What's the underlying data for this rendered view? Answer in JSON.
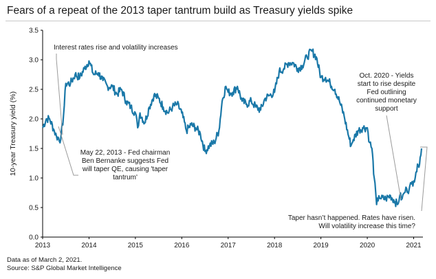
{
  "title": "Fears of a repeat of the 2013 taper tantrum build as Treasury yields spike",
  "footer": {
    "data_note": "Data as of March 2, 2021.",
    "source": "Source: S&P Global Market Intelligence"
  },
  "colors": {
    "line": "#1a78a8",
    "text": "#1a1a1a",
    "axis": "#000000",
    "annotation_leader": "#9a9a9a",
    "border": "#c8c8c8"
  },
  "chart_data": {
    "type": "line",
    "title": "",
    "xlabel": "",
    "ylabel": "10-year Treasury yield (%)",
    "xlim": [
      2013.0,
      2021.2
    ],
    "ylim": [
      0.0,
      3.5
    ],
    "x_ticks": [
      2013,
      2014,
      2015,
      2016,
      2017,
      2018,
      2019,
      2020,
      2021
    ],
    "y_ticks": [
      0.0,
      0.5,
      1.0,
      1.5,
      2.0,
      2.5,
      3.0,
      3.5
    ],
    "y_tick_labels": [
      "0.0",
      "0.5",
      "1.0",
      "1.5",
      "2.0",
      "2.5",
      "3.0",
      "3.5"
    ],
    "grid": false,
    "series": [
      {
        "x": [
          2013.0,
          2013.08,
          2013.15,
          2013.25,
          2013.3,
          2013.39,
          2013.45,
          2013.5,
          2013.6,
          2013.7,
          2013.8,
          2013.9,
          2014.0,
          2014.1,
          2014.2,
          2014.3,
          2014.4,
          2014.5,
          2014.6,
          2014.7,
          2014.8,
          2014.9,
          2015.0,
          2015.05,
          2015.1,
          2015.2,
          2015.3,
          2015.4,
          2015.5,
          2015.6,
          2015.7,
          2015.8,
          2015.9,
          2016.0,
          2016.1,
          2016.2,
          2016.3,
          2016.4,
          2016.5,
          2016.6,
          2016.7,
          2016.8,
          2016.87,
          2016.95,
          2017.0,
          2017.1,
          2017.2,
          2017.3,
          2017.4,
          2017.5,
          2017.6,
          2017.7,
          2017.8,
          2017.9,
          2018.0,
          2018.1,
          2018.2,
          2018.3,
          2018.4,
          2018.5,
          2018.6,
          2018.7,
          2018.8,
          2018.9,
          2019.0,
          2019.1,
          2019.2,
          2019.3,
          2019.4,
          2019.5,
          2019.6,
          2019.65,
          2019.7,
          2019.8,
          2019.9,
          2020.0,
          2020.05,
          2020.1,
          2020.15,
          2020.2,
          2020.25,
          2020.3,
          2020.4,
          2020.5,
          2020.6,
          2020.65,
          2020.7,
          2020.75,
          2020.8,
          2020.85,
          2020.9,
          2020.95,
          2021.0,
          2021.05,
          2021.1,
          2021.14,
          2021.17
        ],
        "y": [
          1.85,
          2.0,
          2.0,
          1.8,
          1.7,
          1.65,
          2.05,
          2.6,
          2.6,
          2.75,
          2.7,
          2.85,
          2.98,
          2.75,
          2.78,
          2.65,
          2.55,
          2.55,
          2.42,
          2.5,
          2.3,
          2.2,
          2.1,
          1.85,
          2.1,
          1.93,
          2.2,
          2.4,
          2.35,
          2.2,
          2.1,
          2.2,
          2.25,
          2.1,
          1.8,
          1.9,
          1.85,
          1.75,
          1.45,
          1.55,
          1.6,
          1.8,
          2.3,
          2.55,
          2.45,
          2.45,
          2.55,
          2.3,
          2.25,
          2.3,
          2.2,
          2.15,
          2.35,
          2.4,
          2.45,
          2.8,
          2.85,
          2.95,
          2.95,
          2.85,
          2.9,
          3.05,
          3.15,
          3.05,
          2.7,
          2.7,
          2.6,
          2.5,
          2.3,
          2.05,
          1.7,
          1.55,
          1.65,
          1.8,
          1.85,
          1.85,
          1.6,
          1.5,
          1.0,
          0.55,
          0.7,
          0.65,
          0.65,
          0.7,
          0.6,
          0.55,
          0.7,
          0.65,
          0.75,
          0.82,
          0.8,
          0.9,
          0.95,
          1.1,
          1.2,
          1.35,
          1.5
        ]
      }
    ],
    "annotations": [
      {
        "text": "Interest rates rise and volatility increases"
      },
      {
        "lines": [
          "May 22, 2013 - Fed chairman",
          "Ben Bernanke suggests Fed",
          "will taper QE, causing 'taper",
          "tantrum'"
        ]
      },
      {
        "lines": [
          "Oct. 2020 - Yields",
          "start to rise despite",
          "Fed outlining",
          "continued monetary",
          "support"
        ]
      },
      {
        "lines": [
          "Taper hasn’t happened. Rates have risen.",
          "Will volatility increase this time?"
        ]
      }
    ]
  }
}
